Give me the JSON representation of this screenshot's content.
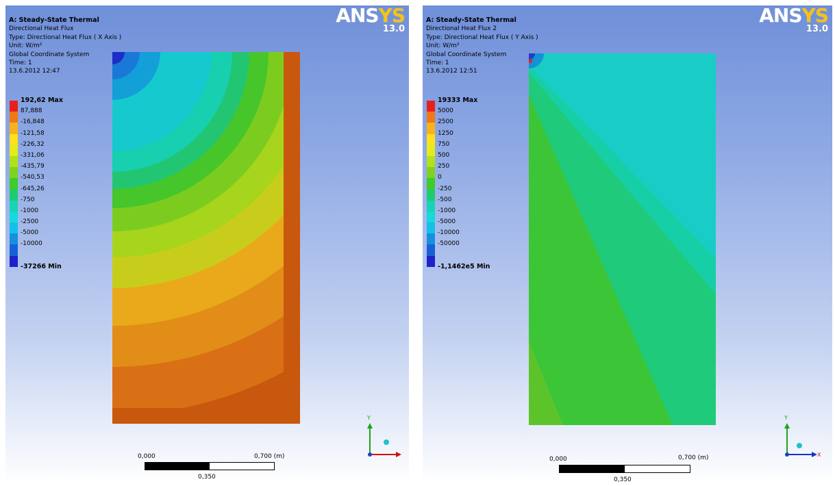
{
  "panels": [
    {
      "title": "A: Steady-State Thermal",
      "result": "Directional Heat Flux",
      "type": "Type: Directional Heat Flux ( X Axis )",
      "unit": "Unit: W/m²",
      "coord": "Global Coordinate System",
      "time": "Time: 1",
      "date": "13.6.2012 12:47",
      "logo": {
        "text_a": "ANS",
        "text_b": "YS",
        "version": "13.0"
      },
      "legend": {
        "max": "192,62 Max",
        "labels": [
          "87,888",
          "-16,848",
          "-121,58",
          "-226,32",
          "-331,06",
          "-435,79",
          "-540,53",
          "-645,26",
          "-750",
          "-1000",
          "-2500",
          "-5000",
          "-10000"
        ],
        "min": "-37266 Min",
        "colors": [
          "#e8201c",
          "#f07818",
          "#f7b21c",
          "#ffe01b",
          "#e3ec1a",
          "#b2e01c",
          "#7fd31e",
          "#3ecc28",
          "#1dcb70",
          "#17d4b4",
          "#15d9dc",
          "#13c0e8",
          "#1590de",
          "#1860d8",
          "#1e22c8"
        ]
      },
      "scale": {
        "left": "0,000",
        "right": "0,700 (m)",
        "mid": "0,350"
      },
      "axis": {
        "y": "Y",
        "x": "X"
      }
    },
    {
      "title": "A: Steady-State Thermal",
      "result": "Directional Heat Flux 2",
      "type": "Type: Directional Heat Flux ( Y Axis )",
      "unit": "Unit: W/m²",
      "coord": "Global Coordinate System",
      "time": "Time: 1",
      "date": "13.6.2012 12:51",
      "logo": {
        "text_a": "ANS",
        "text_b": "YS",
        "version": "13.0"
      },
      "legend": {
        "max": "19333 Max",
        "labels": [
          "5000",
          "2500",
          "1250",
          "750",
          "500",
          "250",
          "0",
          "-250",
          "-500",
          "-1000",
          "-5000",
          "-10000",
          "-50000"
        ],
        "min": "-1,1462e5 Min",
        "colors": [
          "#e8201c",
          "#f07818",
          "#f7b21c",
          "#ffe01b",
          "#e3ec1a",
          "#b2e01c",
          "#7fd31e",
          "#3ecc28",
          "#1dcb70",
          "#17d4b4",
          "#15d9dc",
          "#13c0e8",
          "#1590de",
          "#1860d8",
          "#1e22c8"
        ]
      },
      "scale": {
        "left": "0,000",
        "right": "0,700 (m)",
        "mid": "0,350"
      },
      "axis": {
        "y": "Y",
        "x": "X"
      }
    }
  ]
}
